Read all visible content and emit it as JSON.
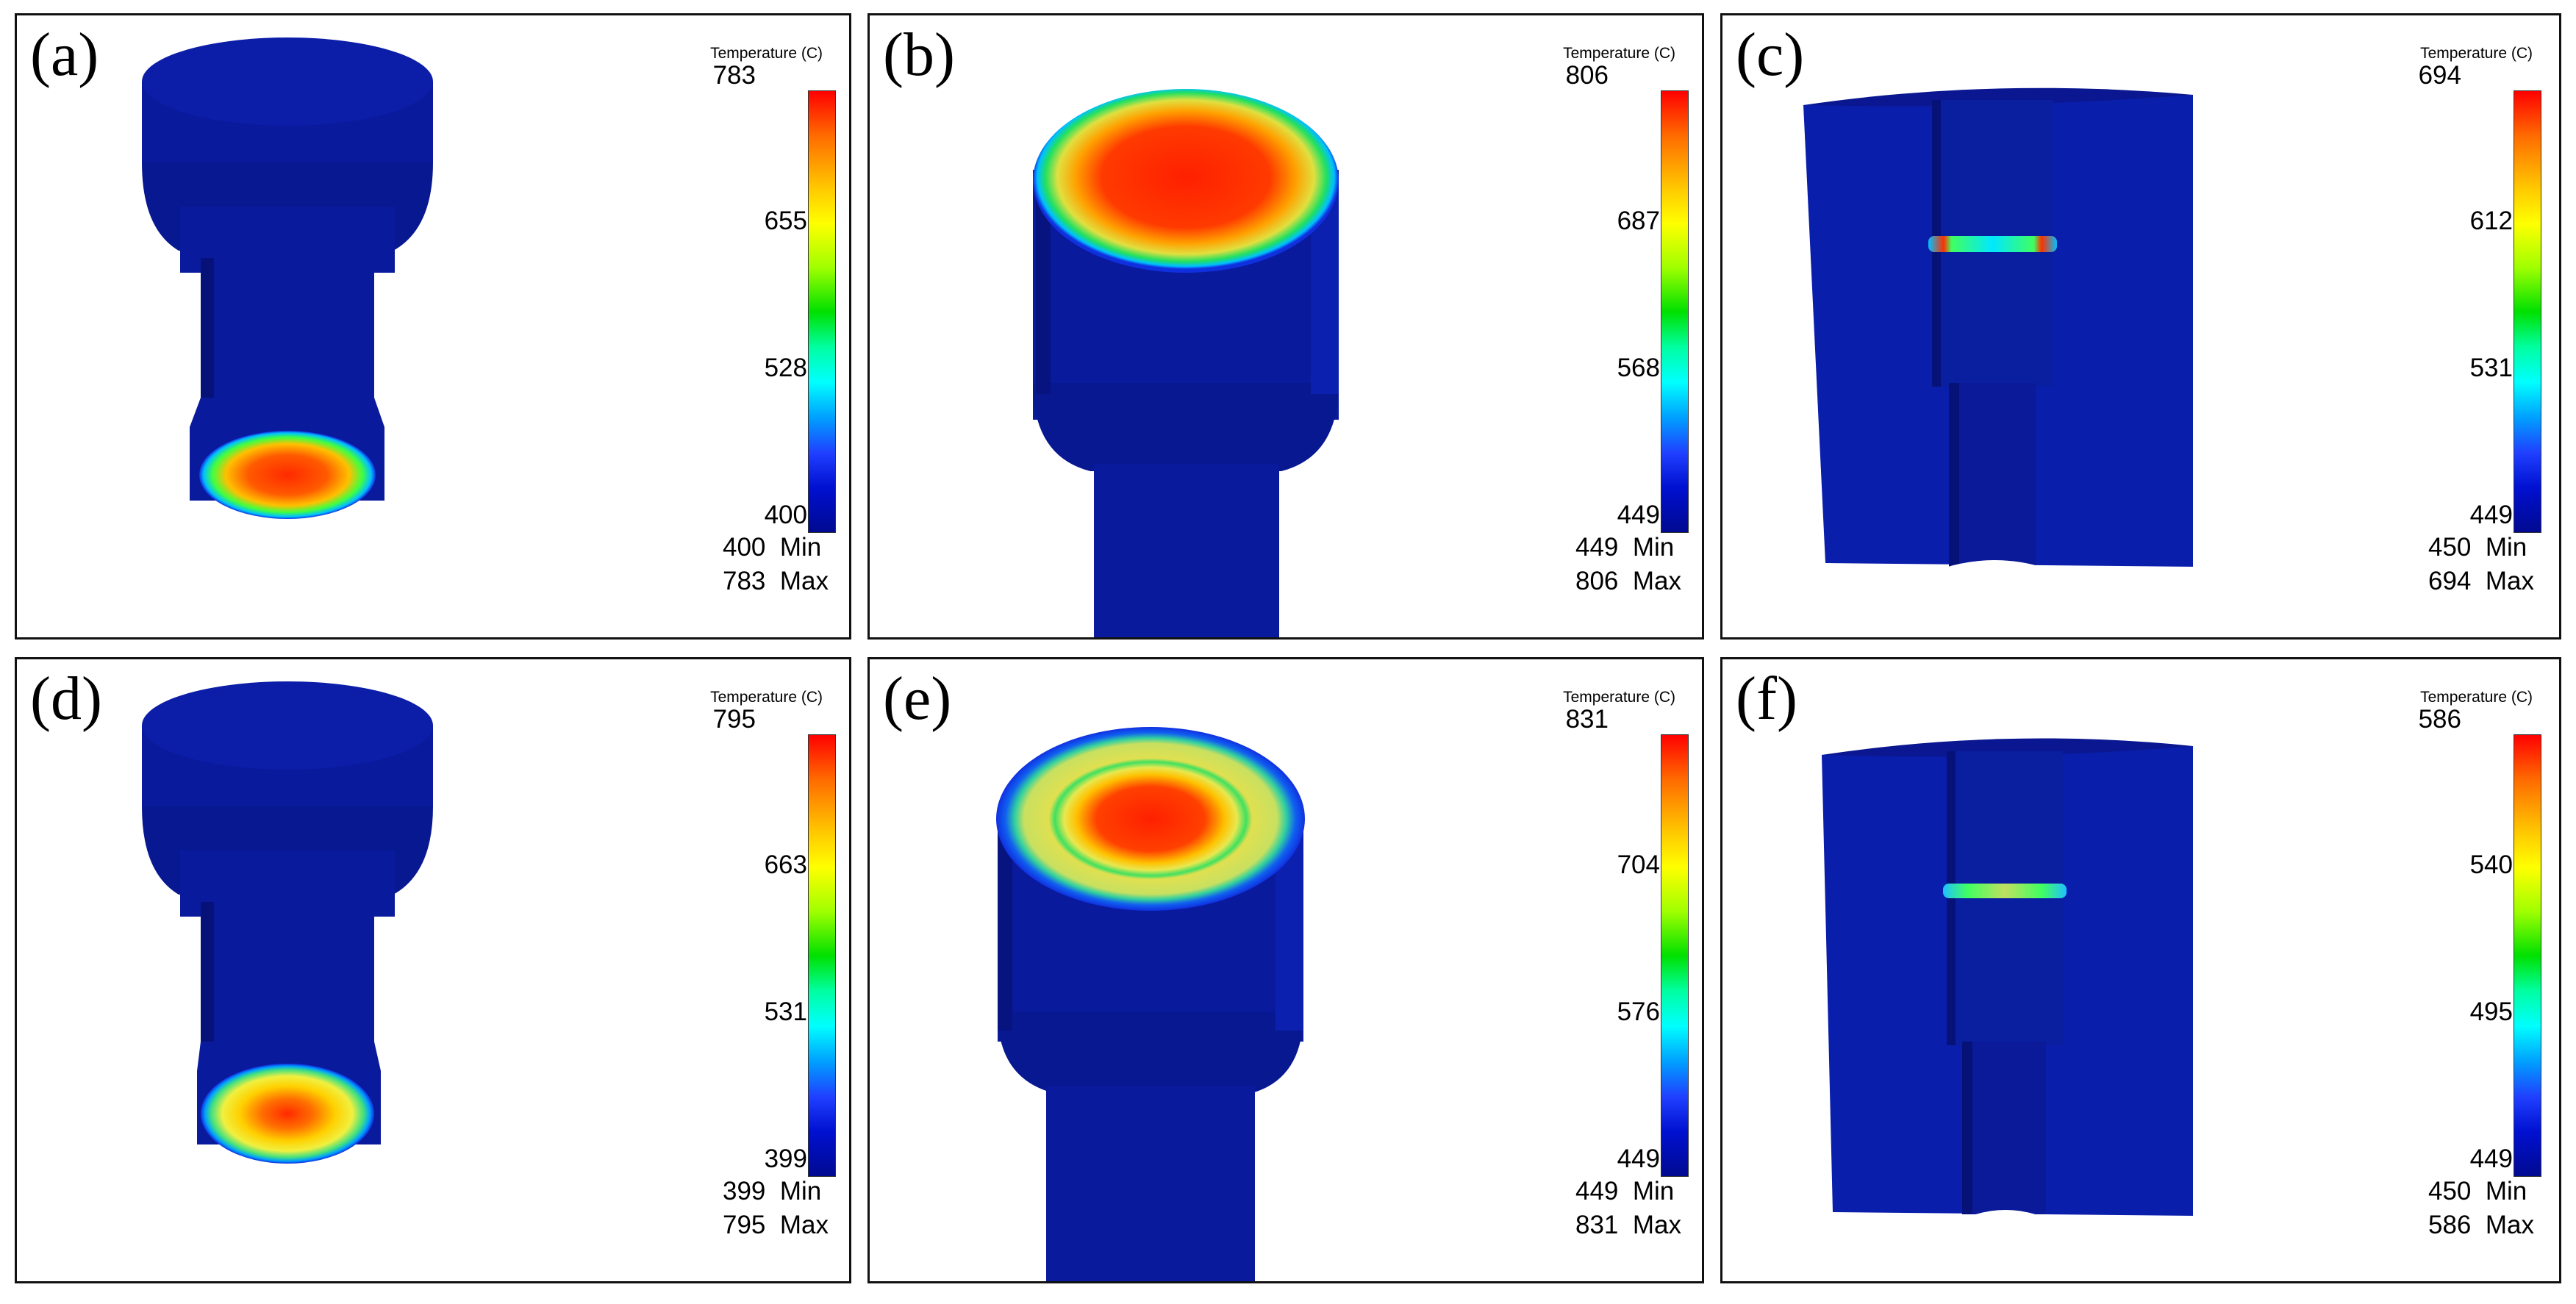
{
  "panels": [
    {
      "label": "(a)",
      "legend_title": "Temperature (C)",
      "ticks": [
        "783",
        "655",
        "528",
        "400"
      ],
      "min_value": "400",
      "max_value": "783",
      "min_label": "Min",
      "max_label": "Max"
    },
    {
      "label": "(b)",
      "legend_title": "Temperature (C)",
      "ticks": [
        "806",
        "687",
        "568",
        "449"
      ],
      "min_value": "449",
      "max_value": "806",
      "min_label": "Min",
      "max_label": "Max"
    },
    {
      "label": "(c)",
      "legend_title": "Temperature (C)",
      "ticks": [
        "694",
        "612",
        "531",
        "449"
      ],
      "min_value": "450",
      "max_value": "694",
      "min_label": "Min",
      "max_label": "Max"
    },
    {
      "label": "(d)",
      "legend_title": "Temperature (C)",
      "ticks": [
        "795",
        "663",
        "531",
        "399"
      ],
      "min_value": "399",
      "max_value": "795",
      "min_label": "Min",
      "max_label": "Max"
    },
    {
      "label": "(e)",
      "legend_title": "Temperature (C)",
      "ticks": [
        "831",
        "704",
        "576",
        "449"
      ],
      "min_value": "449",
      "max_value": "831",
      "min_label": "Min",
      "max_label": "Max"
    },
    {
      "label": "(f)",
      "legend_title": "Temperature (C)",
      "ticks": [
        "586",
        "540",
        "495",
        "449"
      ],
      "min_value": "450",
      "max_value": "586",
      "min_label": "Min",
      "max_label": "Max"
    }
  ],
  "colors": {
    "hot": "#ff1a00",
    "warm": "#ffd000",
    "mid": "#00e040",
    "cool": "#00c8ff",
    "body": "#0a1a9c",
    "body_dark": "#051070"
  },
  "icons": {
    "colorbar": "temperature-colorbar"
  }
}
